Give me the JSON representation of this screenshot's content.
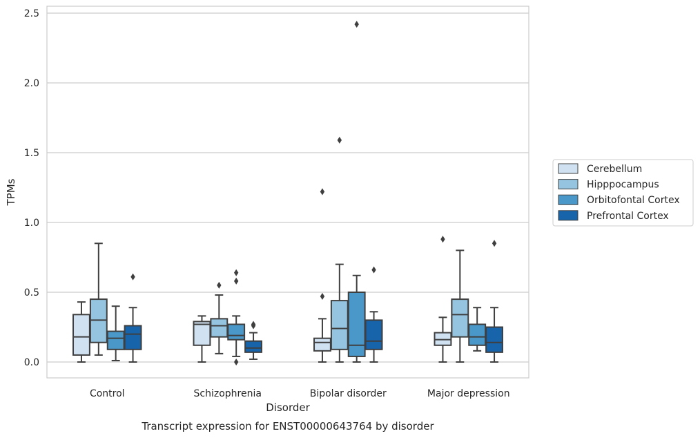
{
  "chart_data": {
    "type": "box",
    "title": "Transcript expression for ENST00000643764 by disorder",
    "xlabel": "Disorder",
    "ylabel": "TPMs",
    "ylim": [
      -0.12,
      2.55
    ],
    "yticks": [
      "0.0",
      "0.5",
      "1.0",
      "1.5",
      "2.0",
      "2.5"
    ],
    "grid": true,
    "legend_position": "right",
    "categories": [
      "Control",
      "Schizophrenia",
      "Bipolar disorder",
      "Major depression"
    ],
    "series": [
      {
        "name": "Cerebellum",
        "color": "#d0e1f2",
        "boxes": [
          {
            "whislo": 0.0,
            "q1": 0.05,
            "med": 0.18,
            "q3": 0.34,
            "whishi": 0.43,
            "fliers": []
          },
          {
            "whislo": 0.0,
            "q1": 0.12,
            "med": 0.27,
            "q3": 0.29,
            "whishi": 0.33,
            "fliers": []
          },
          {
            "whislo": 0.0,
            "q1": 0.08,
            "med": 0.14,
            "q3": 0.17,
            "whishi": 0.31,
            "fliers": [
              0.47,
              1.22
            ]
          },
          {
            "whislo": 0.0,
            "q1": 0.12,
            "med": 0.16,
            "q3": 0.21,
            "whishi": 0.32,
            "fliers": [
              0.88
            ]
          }
        ]
      },
      {
        "name": "Hipppocampus",
        "color": "#94c4df",
        "boxes": [
          {
            "whislo": 0.05,
            "q1": 0.14,
            "med": 0.3,
            "q3": 0.45,
            "whishi": 0.85,
            "fliers": []
          },
          {
            "whislo": 0.06,
            "q1": 0.18,
            "med": 0.26,
            "q3": 0.31,
            "whishi": 0.48,
            "fliers": [
              0.55
            ]
          },
          {
            "whislo": 0.0,
            "q1": 0.09,
            "med": 0.24,
            "q3": 0.44,
            "whishi": 0.7,
            "fliers": [
              1.59
            ]
          },
          {
            "whislo": 0.0,
            "q1": 0.18,
            "med": 0.34,
            "q3": 0.45,
            "whishi": 0.8,
            "fliers": []
          }
        ]
      },
      {
        "name": "Orbitofontal Cortex",
        "color": "#4a98c9",
        "boxes": [
          {
            "whislo": 0.01,
            "q1": 0.09,
            "med": 0.17,
            "q3": 0.22,
            "whishi": 0.4,
            "fliers": []
          },
          {
            "whislo": 0.04,
            "q1": 0.16,
            "med": 0.19,
            "q3": 0.27,
            "whishi": 0.33,
            "fliers": [
              0.0,
              0.58,
              0.64
            ]
          },
          {
            "whislo": 0.0,
            "q1": 0.04,
            "med": 0.12,
            "q3": 0.5,
            "whishi": 0.62,
            "fliers": [
              2.42
            ]
          },
          {
            "whislo": 0.08,
            "q1": 0.12,
            "med": 0.18,
            "q3": 0.27,
            "whishi": 0.39,
            "fliers": []
          }
        ]
      },
      {
        "name": "Prefrontal Cortex",
        "color": "#1764ab",
        "boxes": [
          {
            "whislo": 0.0,
            "q1": 0.09,
            "med": 0.2,
            "q3": 0.26,
            "whishi": 0.39,
            "fliers": [
              0.61
            ]
          },
          {
            "whislo": 0.02,
            "q1": 0.07,
            "med": 0.1,
            "q3": 0.15,
            "whishi": 0.21,
            "fliers": [
              0.26,
              0.27
            ]
          },
          {
            "whislo": 0.0,
            "q1": 0.09,
            "med": 0.15,
            "q3": 0.3,
            "whishi": 0.36,
            "fliers": [
              0.66
            ]
          },
          {
            "whislo": 0.0,
            "q1": 0.07,
            "med": 0.14,
            "q3": 0.25,
            "whishi": 0.39,
            "fliers": [
              0.85
            ]
          }
        ]
      }
    ]
  }
}
